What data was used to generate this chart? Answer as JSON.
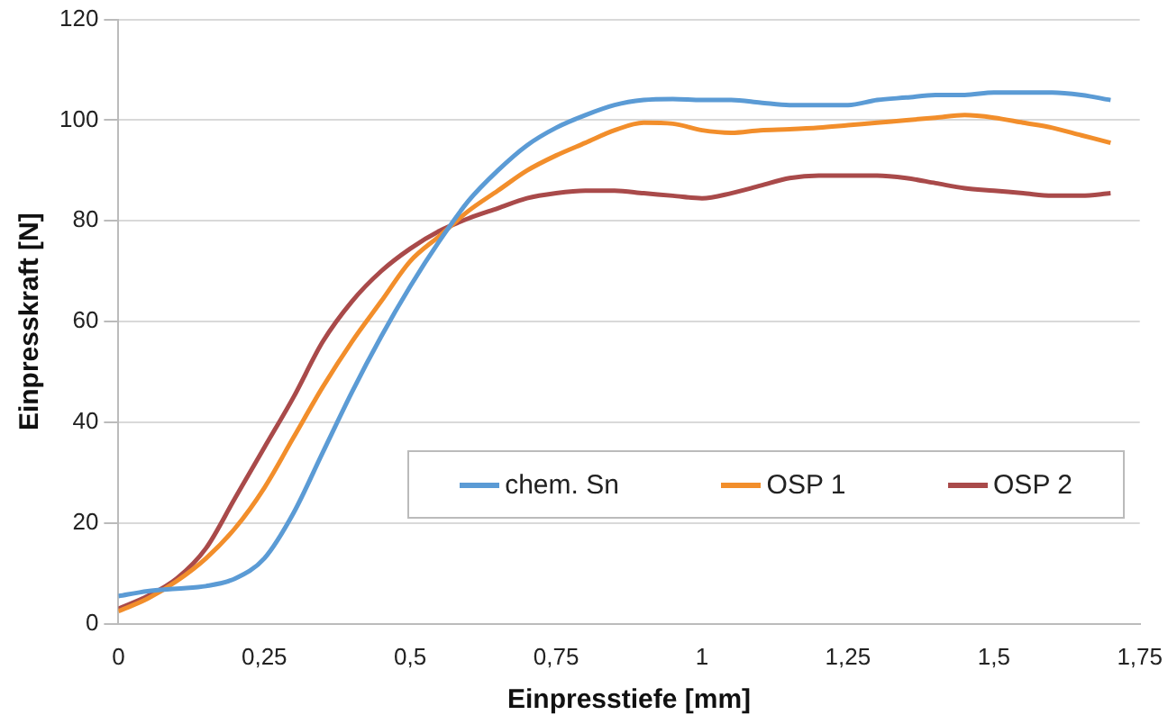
{
  "chart_data": {
    "type": "line",
    "xlabel": "Einpresstiefe [mm]",
    "ylabel": "Einpresskraft [N]",
    "x": [
      0,
      0.05,
      0.1,
      0.15,
      0.2,
      0.25,
      0.3,
      0.35,
      0.4,
      0.45,
      0.5,
      0.55,
      0.6,
      0.65,
      0.7,
      0.75,
      0.8,
      0.85,
      0.9,
      0.95,
      1,
      1.05,
      1.1,
      1.15,
      1.2,
      1.25,
      1.3,
      1.35,
      1.4,
      1.45,
      1.5,
      1.55,
      1.6,
      1.65,
      1.7
    ],
    "series": [
      {
        "name": "chem. Sn",
        "color": "#5b9bd5",
        "values": [
          5.5,
          6.5,
          7,
          7.5,
          9,
          13,
          22,
          34,
          46,
          57,
          67,
          76,
          84,
          90,
          95,
          98.5,
          101,
          103,
          104,
          104.2,
          104,
          104,
          103.5,
          103,
          103,
          103,
          104,
          104.5,
          105,
          105,
          105.5,
          105.5,
          105.5,
          105,
          104
        ]
      },
      {
        "name": "OSP 1",
        "color": "#f28e2b",
        "values": [
          2.5,
          5,
          8.5,
          13,
          19,
          27,
          37,
          47,
          56,
          64,
          72,
          77,
          82,
          86,
          90,
          93,
          95.5,
          98,
          99.5,
          99.3,
          98,
          97.5,
          98,
          98.2,
          98.5,
          99,
          99.5,
          100,
          100.5,
          101,
          100.5,
          99.5,
          98.5,
          97,
          95.5
        ]
      },
      {
        "name": "OSP 2",
        "color": "#a94a4a",
        "values": [
          3,
          5.5,
          9,
          15,
          25,
          35,
          45,
          56,
          64,
          70,
          74.5,
          78,
          80.5,
          82.5,
          84.5,
          85.5,
          86,
          86,
          85.5,
          85,
          84.5,
          85.5,
          87,
          88.5,
          89,
          89,
          89,
          88.5,
          87.5,
          86.5,
          86,
          85.5,
          85,
          85,
          85.5
        ]
      }
    ],
    "xlim": [
      0,
      1.75
    ],
    "xticks": [
      0,
      {
        "value": 0.25,
        "label": "0,25"
      },
      {
        "value": 0.5,
        "label": "0,5"
      },
      {
        "value": 0.75,
        "label": "0,75"
      },
      1,
      {
        "value": 1.25,
        "label": "1,25"
      },
      {
        "value": 1.5,
        "label": "1,5"
      },
      {
        "value": 1.75,
        "label": "1,75"
      }
    ],
    "ylim": [
      0,
      120
    ],
    "yticks": [
      0,
      20,
      40,
      60,
      80,
      100,
      120
    ],
    "grid": "y",
    "legend": "bottom right",
    "marker": "none",
    "line_style": "solid"
  }
}
